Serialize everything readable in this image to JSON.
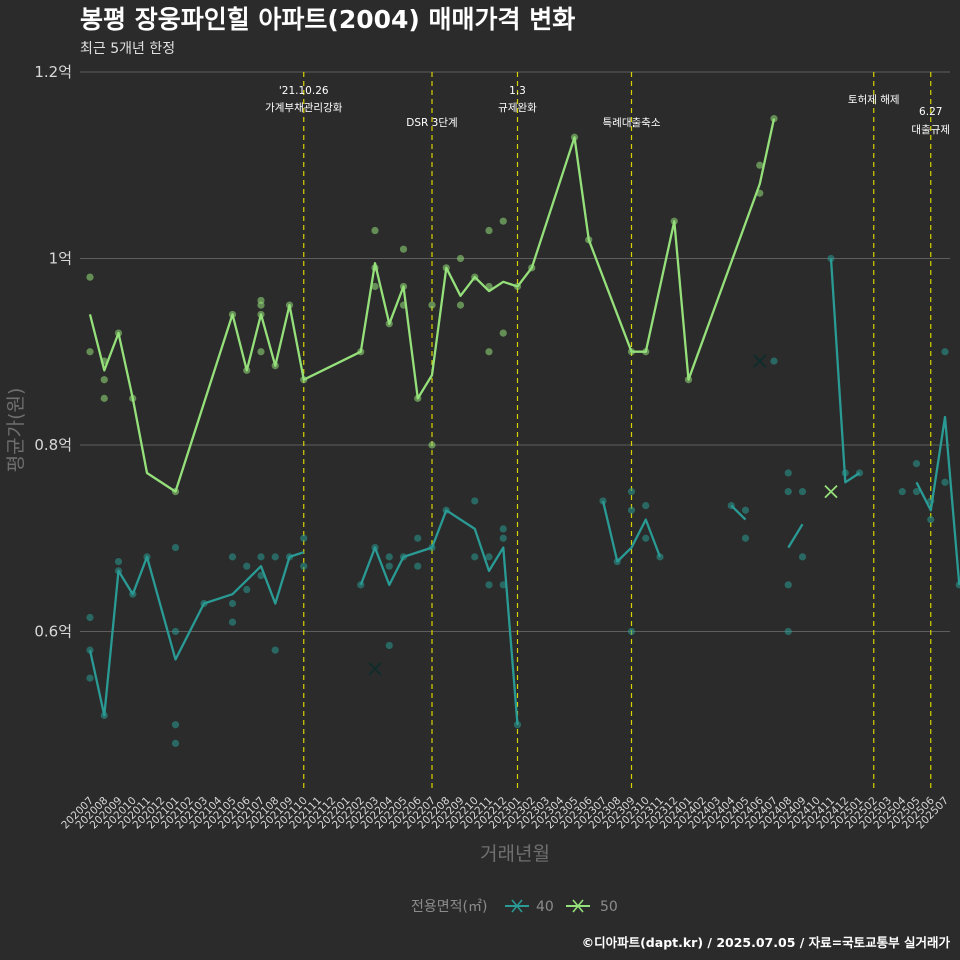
{
  "chart_data": {
    "type": "line",
    "title": "봉평 장웅파인힐 아파트(2004) 매매가격 변화",
    "subtitle": "최근 5개년 한정",
    "xlabel": "거래년월",
    "ylabel": "평균가(원)",
    "ylim": [
      0.43,
      1.2
    ],
    "yticks": [
      {
        "value": 0.6,
        "label": "0.6억"
      },
      {
        "value": 0.8,
        "label": "0.8억"
      },
      {
        "value": 1.0,
        "label": "1억"
      },
      {
        "value": 1.2,
        "label": "1.2억"
      }
    ],
    "categories": [
      "202007",
      "202008",
      "202009",
      "202010",
      "202011",
      "202012",
      "202101",
      "202102",
      "202103",
      "202104",
      "202105",
      "202106",
      "202107",
      "202108",
      "202109",
      "202110",
      "202111",
      "202112",
      "202201",
      "202202",
      "202203",
      "202204",
      "202205",
      "202206",
      "202207",
      "202208",
      "202209",
      "202210",
      "202211",
      "202212",
      "202301",
      "202302",
      "202303",
      "202304",
      "202305",
      "202306",
      "202307",
      "202308",
      "202309",
      "202310",
      "202311",
      "202312",
      "202401",
      "202402",
      "202403",
      "202404",
      "202405",
      "202406",
      "202407",
      "202408",
      "202409",
      "202410",
      "202411",
      "202412",
      "202501",
      "202502",
      "202503",
      "202504",
      "202505",
      "202506",
      "202507"
    ],
    "legend": {
      "title": "전용면적(㎡)",
      "position": "bottom"
    },
    "grid": true,
    "events": [
      {
        "x": "202110",
        "label": "'21.10.26\n가계부채관리강화",
        "level": "high"
      },
      {
        "x": "202207",
        "label": "DSR 3단계",
        "level": "low"
      },
      {
        "x": "202301",
        "label": "1.3\n규제완화",
        "level": "high"
      },
      {
        "x": "202309",
        "label": "특례대출축소",
        "level": "low"
      },
      {
        "x": "202502",
        "label": "토허제 해제",
        "level": "high"
      },
      {
        "x": "202506",
        "label": "6.27\n대출규제",
        "level": "mid"
      }
    ],
    "series": [
      {
        "name": "40",
        "color": "#2a9a94",
        "segments": [
          [
            [
              "202007",
              0.58
            ],
            [
              "202008",
              0.51
            ],
            [
              "202009",
              0.665
            ],
            [
              "202010",
              0.64
            ],
            [
              "202011",
              0.68
            ],
            [
              "202101",
              0.57
            ],
            [
              "202103",
              0.63
            ],
            [
              "202105",
              0.64
            ],
            [
              "202106",
              0.655
            ],
            [
              "202107",
              0.67
            ],
            [
              "202108",
              0.63
            ],
            [
              "202109",
              0.68
            ],
            [
              "202110",
              0.685
            ]
          ],
          [
            [
              "202202",
              0.65
            ],
            [
              "202203",
              0.69
            ],
            [
              "202204",
              0.65
            ],
            [
              "202205",
              0.68
            ],
            [
              "202207",
              0.69
            ],
            [
              "202208",
              0.73
            ],
            [
              "202210",
              0.71
            ],
            [
              "202211",
              0.665
            ],
            [
              "202212",
              0.69
            ],
            [
              "202301",
              0.5
            ]
          ],
          [
            [
              "202307",
              0.74
            ],
            [
              "202308",
              0.675
            ],
            [
              "202309",
              0.69
            ],
            [
              "202310",
              0.72
            ],
            [
              "202311",
              0.68
            ]
          ],
          [
            [
              "202404",
              0.735
            ],
            [
              "202405",
              0.72
            ]
          ],
          [
            [
              "202407",
              0.89
            ]
          ],
          [
            [
              "202408",
              0.69
            ],
            [
              "202409",
              0.715
            ]
          ],
          [
            [
              "202411",
              1.0
            ],
            [
              "202412",
              0.76
            ],
            [
              "202501",
              0.77
            ]
          ],
          [
            [
              "202505",
              0.76
            ],
            [
              "202506",
              0.73
            ],
            [
              "202507",
              0.83
            ],
            [
              "202508",
              0.65
            ]
          ]
        ],
        "points": [
          [
            "202007",
            0.615
          ],
          [
            "202007",
            0.58
          ],
          [
            "202007",
            0.55
          ],
          [
            "202008",
            0.51
          ],
          [
            "202009",
            0.675
          ],
          [
            "202009",
            0.665
          ],
          [
            "202010",
            0.64
          ],
          [
            "202011",
            0.68
          ],
          [
            "202101",
            0.69
          ],
          [
            "202101",
            0.6
          ],
          [
            "202101",
            0.5
          ],
          [
            "202101",
            0.48
          ],
          [
            "202103",
            0.63
          ],
          [
            "202105",
            0.68
          ],
          [
            "202105",
            0.63
          ],
          [
            "202105",
            0.61
          ],
          [
            "202106",
            0.67
          ],
          [
            "202106",
            0.645
          ],
          [
            "202107",
            0.68
          ],
          [
            "202107",
            0.66
          ],
          [
            "202108",
            0.68
          ],
          [
            "202108",
            0.58
          ],
          [
            "202109",
            0.68
          ],
          [
            "202110",
            0.7
          ],
          [
            "202110",
            0.67
          ],
          [
            "202202",
            0.65
          ],
          [
            "202203",
            0.69
          ],
          [
            "202204",
            0.68
          ],
          [
            "202204",
            0.67
          ],
          [
            "202204",
            0.585
          ],
          [
            "202205",
            0.68
          ],
          [
            "202206",
            0.7
          ],
          [
            "202206",
            0.67
          ],
          [
            "202207",
            0.69
          ],
          [
            "202208",
            0.73
          ],
          [
            "202210",
            0.74
          ],
          [
            "202210",
            0.68
          ],
          [
            "202211",
            0.68
          ],
          [
            "202211",
            0.65
          ],
          [
            "202212",
            0.71
          ],
          [
            "202212",
            0.7
          ],
          [
            "202212",
            0.65
          ],
          [
            "202301",
            0.5
          ],
          [
            "202307",
            0.74
          ],
          [
            "202308",
            0.675
          ],
          [
            "202309",
            0.75
          ],
          [
            "202309",
            0.73
          ],
          [
            "202309",
            0.6
          ],
          [
            "202310",
            0.735
          ],
          [
            "202310",
            0.7
          ],
          [
            "202311",
            0.68
          ],
          [
            "202404",
            0.735
          ],
          [
            "202405",
            0.73
          ],
          [
            "202405",
            0.7
          ],
          [
            "202407",
            0.89
          ],
          [
            "202408",
            0.77
          ],
          [
            "202408",
            0.75
          ],
          [
            "202408",
            0.65
          ],
          [
            "202408",
            0.6
          ],
          [
            "202409",
            0.75
          ],
          [
            "202409",
            0.68
          ],
          [
            "202411",
            1.0
          ],
          [
            "202412",
            0.77
          ],
          [
            "202501",
            0.77
          ],
          [
            "202504",
            0.75
          ],
          [
            "202505",
            0.78
          ],
          [
            "202505",
            0.75
          ],
          [
            "202506",
            0.74
          ],
          [
            "202506",
            0.72
          ],
          [
            "202507",
            0.9
          ],
          [
            "202507",
            0.76
          ],
          [
            "202508",
            0.65
          ]
        ],
        "crosses": [
          [
            "202203",
            0.56
          ],
          [
            "202406",
            0.89
          ]
        ]
      },
      {
        "name": "50",
        "color": "#95e07a",
        "segments": [
          [
            [
              "202007",
              0.94
            ],
            [
              "202008",
              0.88
            ],
            [
              "202009",
              0.92
            ],
            [
              "202010",
              0.85
            ],
            [
              "202011",
              0.77
            ],
            [
              "202101",
              0.75
            ],
            [
              "202105",
              0.94
            ],
            [
              "202106",
              0.88
            ],
            [
              "202107",
              0.94
            ],
            [
              "202108",
              0.885
            ],
            [
              "202109",
              0.95
            ],
            [
              "202110",
              0.87
            ],
            [
              "202202",
              0.9
            ],
            [
              "202203",
              0.995
            ],
            [
              "202204",
              0.93
            ],
            [
              "202205",
              0.97
            ],
            [
              "202206",
              0.85
            ],
            [
              "202207",
              0.875
            ],
            [
              "202208",
              0.99
            ],
            [
              "202209",
              0.96
            ],
            [
              "202210",
              0.98
            ],
            [
              "202211",
              0.965
            ],
            [
              "202212",
              0.975
            ],
            [
              "202301",
              0.97
            ],
            [
              "202302",
              0.99
            ],
            [
              "202305",
              1.13
            ],
            [
              "202306",
              1.02
            ],
            [
              "202309",
              0.9
            ],
            [
              "202310",
              0.9
            ],
            [
              "202312",
              1.04
            ],
            [
              "202401",
              0.87
            ],
            [
              "202406",
              1.08
            ],
            [
              "202407",
              1.15
            ]
          ]
        ],
        "points": [
          [
            "202007",
            0.98
          ],
          [
            "202007",
            0.9
          ],
          [
            "202008",
            0.89
          ],
          [
            "202008",
            0.87
          ],
          [
            "202008",
            0.85
          ],
          [
            "202009",
            0.92
          ],
          [
            "202010",
            0.85
          ],
          [
            "202101",
            0.75
          ],
          [
            "202105",
            0.94
          ],
          [
            "202106",
            0.88
          ],
          [
            "202107",
            0.955
          ],
          [
            "202107",
            0.95
          ],
          [
            "202107",
            0.94
          ],
          [
            "202107",
            0.9
          ],
          [
            "202108",
            0.885
          ],
          [
            "202109",
            0.95
          ],
          [
            "202110",
            0.87
          ],
          [
            "202202",
            0.9
          ],
          [
            "202203",
            1.03
          ],
          [
            "202203",
            0.99
          ],
          [
            "202203",
            0.97
          ],
          [
            "202204",
            0.93
          ],
          [
            "202205",
            1.01
          ],
          [
            "202205",
            0.97
          ],
          [
            "202205",
            0.95
          ],
          [
            "202206",
            0.85
          ],
          [
            "202207",
            0.95
          ],
          [
            "202207",
            0.8
          ],
          [
            "202208",
            0.99
          ],
          [
            "202209",
            0.95
          ],
          [
            "202209",
            1.0
          ],
          [
            "202210",
            0.98
          ],
          [
            "202211",
            1.03
          ],
          [
            "202211",
            0.97
          ],
          [
            "202211",
            0.9
          ],
          [
            "202212",
            1.04
          ],
          [
            "202212",
            0.92
          ],
          [
            "202301",
            0.97
          ],
          [
            "202302",
            0.99
          ],
          [
            "202305",
            1.13
          ],
          [
            "202306",
            1.02
          ],
          [
            "202309",
            0.9
          ],
          [
            "202310",
            0.9
          ],
          [
            "202312",
            1.04
          ],
          [
            "202401",
            0.87
          ],
          [
            "202406",
            1.1
          ],
          [
            "202406",
            1.07
          ],
          [
            "202407",
            1.15
          ]
        ],
        "crosses": [
          [
            "202411",
            0.75
          ]
        ]
      }
    ],
    "caption": "©디아파트(dapt.kr) / 2025.07.05 / 자료=국토교통부 실거래가"
  }
}
